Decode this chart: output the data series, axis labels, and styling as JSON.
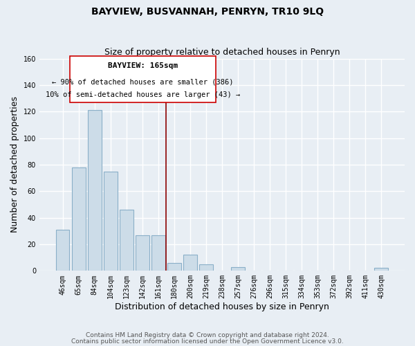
{
  "title": "BAYVIEW, BUSVANNAH, PENRYN, TR10 9LQ",
  "subtitle": "Size of property relative to detached houses in Penryn",
  "xlabel": "Distribution of detached houses by size in Penryn",
  "ylabel": "Number of detached properties",
  "bar_labels": [
    "46sqm",
    "65sqm",
    "84sqm",
    "104sqm",
    "123sqm",
    "142sqm",
    "161sqm",
    "180sqm",
    "200sqm",
    "219sqm",
    "238sqm",
    "257sqm",
    "276sqm",
    "296sqm",
    "315sqm",
    "334sqm",
    "353sqm",
    "372sqm",
    "392sqm",
    "411sqm",
    "430sqm"
  ],
  "bar_values": [
    31,
    78,
    121,
    75,
    46,
    27,
    27,
    6,
    12,
    5,
    0,
    3,
    0,
    0,
    0,
    0,
    0,
    0,
    0,
    0,
    2
  ],
  "bar_color": "#ccdce8",
  "bar_edge_color": "#8aafc8",
  "ylim": [
    0,
    160
  ],
  "yticks": [
    0,
    20,
    40,
    60,
    80,
    100,
    120,
    140,
    160
  ],
  "vline_color": "#8b0000",
  "annotation_title": "BAYVIEW: 165sqm",
  "annotation_line1": "← 90% of detached houses are smaller (386)",
  "annotation_line2": "10% of semi-detached houses are larger (43) →",
  "annotation_box_color": "#ffffff",
  "annotation_box_edge": "#cc0000",
  "footer1": "Contains HM Land Registry data © Crown copyright and database right 2024.",
  "footer2": "Contains public sector information licensed under the Open Government Licence v3.0.",
  "background_color": "#e8eef4",
  "plot_bg_color": "#e8eef4",
  "grid_color": "#ffffff",
  "title_fontsize": 10,
  "subtitle_fontsize": 9,
  "axis_label_fontsize": 9,
  "tick_fontsize": 7,
  "footer_fontsize": 6.5,
  "ann_title_fontsize": 8,
  "ann_text_fontsize": 7.5
}
